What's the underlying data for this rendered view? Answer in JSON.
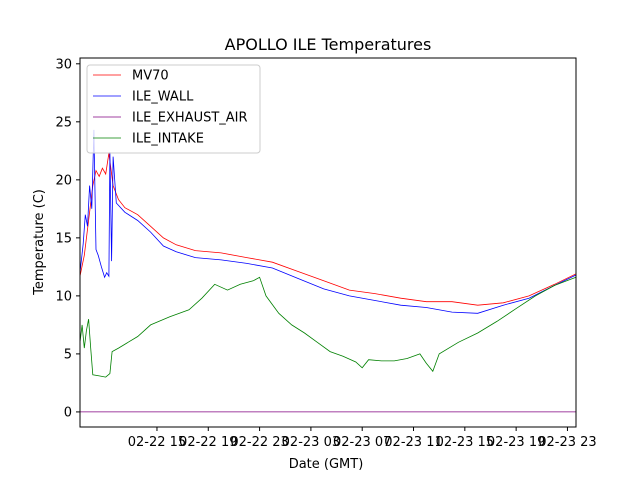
{
  "chart_data": {
    "type": "line",
    "title": "APOLLO ILE Temperatures",
    "xlabel": "Date (GMT)",
    "ylabel": "Temperature (C)",
    "xlim": [
      "2022-02-22 09:00",
      "2022-02-23 23:40"
    ],
    "ylim": [
      -1.3,
      30.5
    ],
    "yticks": [
      0,
      5,
      10,
      15,
      20,
      25,
      30
    ],
    "xticks": [
      "2022-02-22 15:00",
      "2022-02-22 19:00",
      "2022-02-22 23:00",
      "2022-02-23 03:00",
      "2022-02-23 07:00",
      "2022-02-23 11:00",
      "2022-02-23 15:00",
      "2022-02-23 19:00",
      "2022-02-23 23:00"
    ],
    "xtick_labels": [
      "02-22 15",
      "02-22 19",
      "02-22 23",
      "02-23 03",
      "02-23 07",
      "02-23 11",
      "02-23 15",
      "02-23 19",
      "02-23 23"
    ],
    "grid": false,
    "legend_position": "top-left",
    "series": [
      {
        "name": "MV70",
        "color": "#ff0000",
        "points": [
          [
            "2022-02-22 09:00",
            11.7
          ],
          [
            "2022-02-22 09:20",
            13.5
          ],
          [
            "2022-02-22 09:40",
            16.5
          ],
          [
            "2022-02-22 10:00",
            19.5
          ],
          [
            "2022-02-22 10:15",
            20.8
          ],
          [
            "2022-02-22 10:30",
            20.3
          ],
          [
            "2022-02-22 10:45",
            21.0
          ],
          [
            "2022-02-22 11:00",
            20.5
          ],
          [
            "2022-02-22 11:15",
            22.3
          ],
          [
            "2022-02-22 11:35",
            19.5
          ],
          [
            "2022-02-22 12:00",
            18.3
          ],
          [
            "2022-02-22 12:30",
            17.6
          ],
          [
            "2022-02-22 13:30",
            17.0
          ],
          [
            "2022-02-22 14:30",
            16.0
          ],
          [
            "2022-02-22 15:30",
            15.0
          ],
          [
            "2022-02-22 16:30",
            14.4
          ],
          [
            "2022-02-22 18:00",
            13.9
          ],
          [
            "2022-02-22 20:00",
            13.7
          ],
          [
            "2022-02-22 22:00",
            13.3
          ],
          [
            "2022-02-23 00:00",
            12.9
          ],
          [
            "2022-02-23 02:00",
            12.1
          ],
          [
            "2022-02-23 04:00",
            11.3
          ],
          [
            "2022-02-23 06:00",
            10.5
          ],
          [
            "2022-02-23 08:00",
            10.2
          ],
          [
            "2022-02-23 10:00",
            9.8
          ],
          [
            "2022-02-23 12:00",
            9.5
          ],
          [
            "2022-02-23 14:00",
            9.5
          ],
          [
            "2022-02-23 16:00",
            9.2
          ],
          [
            "2022-02-23 18:00",
            9.4
          ],
          [
            "2022-02-23 20:00",
            10.0
          ],
          [
            "2022-02-23 22:00",
            11.0
          ],
          [
            "2022-02-23 23:40",
            11.9
          ]
        ]
      },
      {
        "name": "ILE_WALL",
        "color": "#0000ff",
        "points": [
          [
            "2022-02-22 09:00",
            12.0
          ],
          [
            "2022-02-22 09:15",
            14.5
          ],
          [
            "2022-02-22 09:25",
            17.0
          ],
          [
            "2022-02-22 09:35",
            16.0
          ],
          [
            "2022-02-22 09:45",
            19.5
          ],
          [
            "2022-02-22 09:55",
            17.5
          ],
          [
            "2022-02-22 10:05",
            24.3
          ],
          [
            "2022-02-22 10:15",
            14.0
          ],
          [
            "2022-02-22 10:25",
            13.5
          ],
          [
            "2022-02-22 10:40",
            12.5
          ],
          [
            "2022-02-22 10:55",
            11.6
          ],
          [
            "2022-02-22 11:05",
            12.0
          ],
          [
            "2022-02-22 11:15",
            11.7
          ],
          [
            "2022-02-22 11:20",
            22.4
          ],
          [
            "2022-02-22 11:28",
            13.0
          ],
          [
            "2022-02-22 11:35",
            22.0
          ],
          [
            "2022-02-22 11:50",
            18.0
          ],
          [
            "2022-02-22 12:30",
            17.2
          ],
          [
            "2022-02-22 13:30",
            16.5
          ],
          [
            "2022-02-22 14:30",
            15.5
          ],
          [
            "2022-02-22 15:30",
            14.3
          ],
          [
            "2022-02-22 16:30",
            13.8
          ],
          [
            "2022-02-22 18:00",
            13.3
          ],
          [
            "2022-02-22 20:00",
            13.1
          ],
          [
            "2022-02-22 22:00",
            12.8
          ],
          [
            "2022-02-23 00:00",
            12.4
          ],
          [
            "2022-02-23 02:00",
            11.5
          ],
          [
            "2022-02-23 04:00",
            10.6
          ],
          [
            "2022-02-23 06:00",
            10.0
          ],
          [
            "2022-02-23 08:00",
            9.6
          ],
          [
            "2022-02-23 10:00",
            9.2
          ],
          [
            "2022-02-23 12:00",
            9.0
          ],
          [
            "2022-02-23 14:00",
            8.6
          ],
          [
            "2022-02-23 16:00",
            8.5
          ],
          [
            "2022-02-23 18:00",
            9.2
          ],
          [
            "2022-02-23 20:00",
            9.8
          ],
          [
            "2022-02-23 22:00",
            10.9
          ],
          [
            "2022-02-23 23:40",
            11.8
          ]
        ]
      },
      {
        "name": "ILE_EXHAUST_AIR",
        "color": "#800080",
        "points": [
          [
            "2022-02-22 09:00",
            0.0
          ],
          [
            "2022-02-23 23:40",
            0.0
          ]
        ]
      },
      {
        "name": "ILE_INTAKE",
        "color": "#008000",
        "points": [
          [
            "2022-02-22 09:00",
            6.0
          ],
          [
            "2022-02-22 09:10",
            7.5
          ],
          [
            "2022-02-22 09:20",
            5.5
          ],
          [
            "2022-02-22 09:30",
            7.0
          ],
          [
            "2022-02-22 09:40",
            8.0
          ],
          [
            "2022-02-22 09:50",
            5.5
          ],
          [
            "2022-02-22 10:00",
            3.2
          ],
          [
            "2022-02-22 10:30",
            3.1
          ],
          [
            "2022-02-22 11:00",
            3.0
          ],
          [
            "2022-02-22 11:20",
            3.3
          ],
          [
            "2022-02-22 11:30",
            5.2
          ],
          [
            "2022-02-22 12:00",
            5.5
          ],
          [
            "2022-02-22 13:30",
            6.5
          ],
          [
            "2022-02-22 14:30",
            7.5
          ],
          [
            "2022-02-22 16:00",
            8.2
          ],
          [
            "2022-02-22 17:30",
            8.8
          ],
          [
            "2022-02-22 18:30",
            9.8
          ],
          [
            "2022-02-22 19:30",
            11.0
          ],
          [
            "2022-02-22 20:30",
            10.5
          ],
          [
            "2022-02-22 21:30",
            11.0
          ],
          [
            "2022-02-22 22:30",
            11.3
          ],
          [
            "2022-02-22 23:00",
            11.6
          ],
          [
            "2022-02-22 23:30",
            10.0
          ],
          [
            "2022-02-23 00:30",
            8.5
          ],
          [
            "2022-02-23 01:30",
            7.5
          ],
          [
            "2022-02-23 02:30",
            6.8
          ],
          [
            "2022-02-23 03:30",
            6.0
          ],
          [
            "2022-02-23 04:30",
            5.2
          ],
          [
            "2022-02-23 05:30",
            4.8
          ],
          [
            "2022-02-23 06:30",
            4.3
          ],
          [
            "2022-02-23 07:00",
            3.8
          ],
          [
            "2022-02-23 07:30",
            4.5
          ],
          [
            "2022-02-23 08:30",
            4.4
          ],
          [
            "2022-02-23 09:30",
            4.4
          ],
          [
            "2022-02-23 10:30",
            4.6
          ],
          [
            "2022-02-23 11:30",
            5.0
          ],
          [
            "2022-02-23 12:00",
            4.2
          ],
          [
            "2022-02-23 12:30",
            3.5
          ],
          [
            "2022-02-23 13:00",
            5.0
          ],
          [
            "2022-02-23 14:30",
            6.0
          ],
          [
            "2022-02-23 16:00",
            6.8
          ],
          [
            "2022-02-23 17:30",
            7.8
          ],
          [
            "2022-02-23 19:00",
            8.9
          ],
          [
            "2022-02-23 20:30",
            10.0
          ],
          [
            "2022-02-23 22:00",
            10.9
          ],
          [
            "2022-02-23 23:40",
            11.6
          ]
        ]
      }
    ]
  }
}
